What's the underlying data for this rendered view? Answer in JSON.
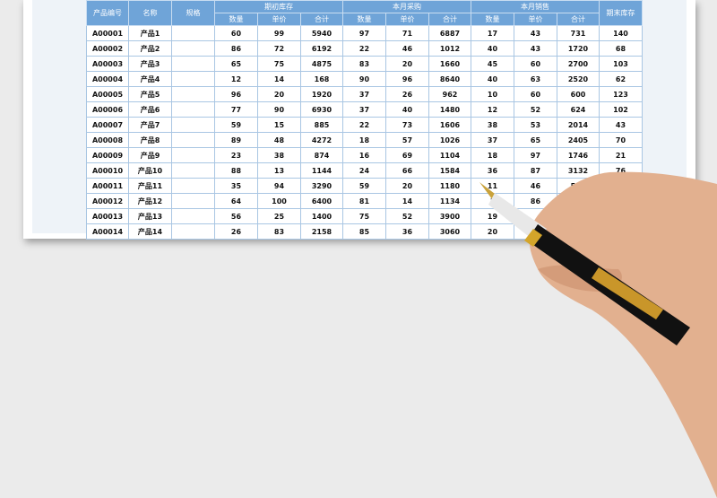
{
  "headers": {
    "code": "产品编号",
    "name": "名称",
    "spec": "规格",
    "opening": "期初库存",
    "purchase": "本月采购",
    "sales": "本月销售",
    "closing": "期末库存",
    "qty": "数量",
    "price": "单价",
    "total": "合计"
  },
  "rows": [
    [
      "A00001",
      "产品1",
      "",
      "60",
      "99",
      "5940",
      "97",
      "71",
      "6887",
      "17",
      "43",
      "731",
      "140"
    ],
    [
      "A00002",
      "产品2",
      "",
      "86",
      "72",
      "6192",
      "22",
      "46",
      "1012",
      "40",
      "43",
      "1720",
      "68"
    ],
    [
      "A00003",
      "产品3",
      "",
      "65",
      "75",
      "4875",
      "83",
      "20",
      "1660",
      "45",
      "60",
      "2700",
      "103"
    ],
    [
      "A00004",
      "产品4",
      "",
      "12",
      "14",
      "168",
      "90",
      "96",
      "8640",
      "40",
      "63",
      "2520",
      "62"
    ],
    [
      "A00005",
      "产品5",
      "",
      "96",
      "20",
      "1920",
      "37",
      "26",
      "962",
      "10",
      "60",
      "600",
      "123"
    ],
    [
      "A00006",
      "产品6",
      "",
      "77",
      "90",
      "6930",
      "37",
      "40",
      "1480",
      "12",
      "52",
      "624",
      "102"
    ],
    [
      "A00007",
      "产品7",
      "",
      "59",
      "15",
      "885",
      "22",
      "73",
      "1606",
      "38",
      "53",
      "2014",
      "43"
    ],
    [
      "A00008",
      "产品8",
      "",
      "89",
      "48",
      "4272",
      "18",
      "57",
      "1026",
      "37",
      "65",
      "2405",
      "70"
    ],
    [
      "A00009",
      "产品9",
      "",
      "23",
      "38",
      "874",
      "16",
      "69",
      "1104",
      "18",
      "97",
      "1746",
      "21"
    ],
    [
      "A00010",
      "产品10",
      "",
      "88",
      "13",
      "1144",
      "24",
      "66",
      "1584",
      "36",
      "87",
      "3132",
      "76"
    ],
    [
      "A00011",
      "产品11",
      "",
      "35",
      "94",
      "3290",
      "59",
      "20",
      "1180",
      "11",
      "46",
      "506",
      ""
    ],
    [
      "A00012",
      "产品12",
      "",
      "64",
      "100",
      "6400",
      "81",
      "14",
      "1134",
      "1",
      "86",
      "",
      ""
    ],
    [
      "A00013",
      "产品13",
      "",
      "56",
      "25",
      "1400",
      "75",
      "52",
      "3900",
      "19",
      "",
      "",
      ""
    ],
    [
      "A00014",
      "产品14",
      "",
      "26",
      "83",
      "2158",
      "85",
      "36",
      "3060",
      "20",
      "",
      "",
      ""
    ]
  ],
  "colors": {
    "header": "#6fa4d8",
    "grid": "#a9c6e3",
    "background": "#ebebeb"
  }
}
